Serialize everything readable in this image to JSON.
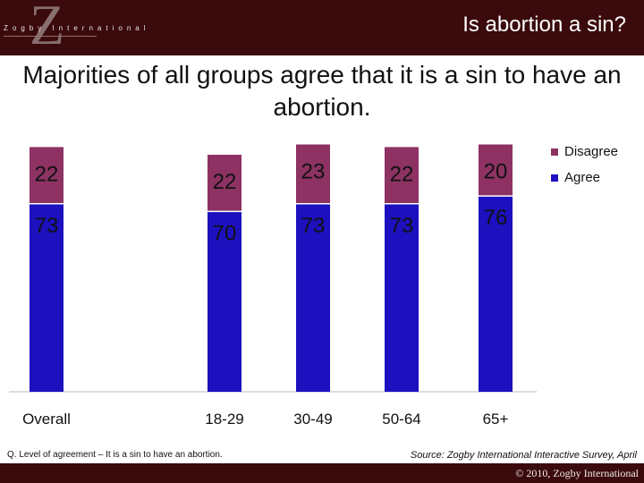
{
  "header": {
    "logo_letter": "Z",
    "logo_text": "Zogby International",
    "title": "Is abortion a sin?"
  },
  "subtitle": "Majorities of all groups agree that it is a sin to have an abortion.",
  "colors": {
    "agree": "#1c10bf",
    "disagree": "#8d3263",
    "header_bg": "#3a0a0c"
  },
  "chart_data": {
    "type": "bar",
    "stacked": true,
    "categories": [
      "Overall",
      "18-29",
      "30-49",
      "50-64",
      "65+"
    ],
    "series": [
      {
        "name": "Agree",
        "values": [
          73,
          70,
          73,
          73,
          76
        ]
      },
      {
        "name": "Disagree",
        "values": [
          22,
          22,
          23,
          22,
          20
        ]
      }
    ],
    "legend": [
      "Disagree",
      "Agree"
    ],
    "legend_position": "top-right",
    "ylim": [
      0,
      100
    ],
    "grid": false,
    "title": "",
    "xlabel": "",
    "ylabel": ""
  },
  "footnote": "Q. Level of agreement – It is a sin to have an abortion.",
  "source": "Source: Zogby International Interactive Survey, April",
  "copyright": "© 2010, Zogby International"
}
